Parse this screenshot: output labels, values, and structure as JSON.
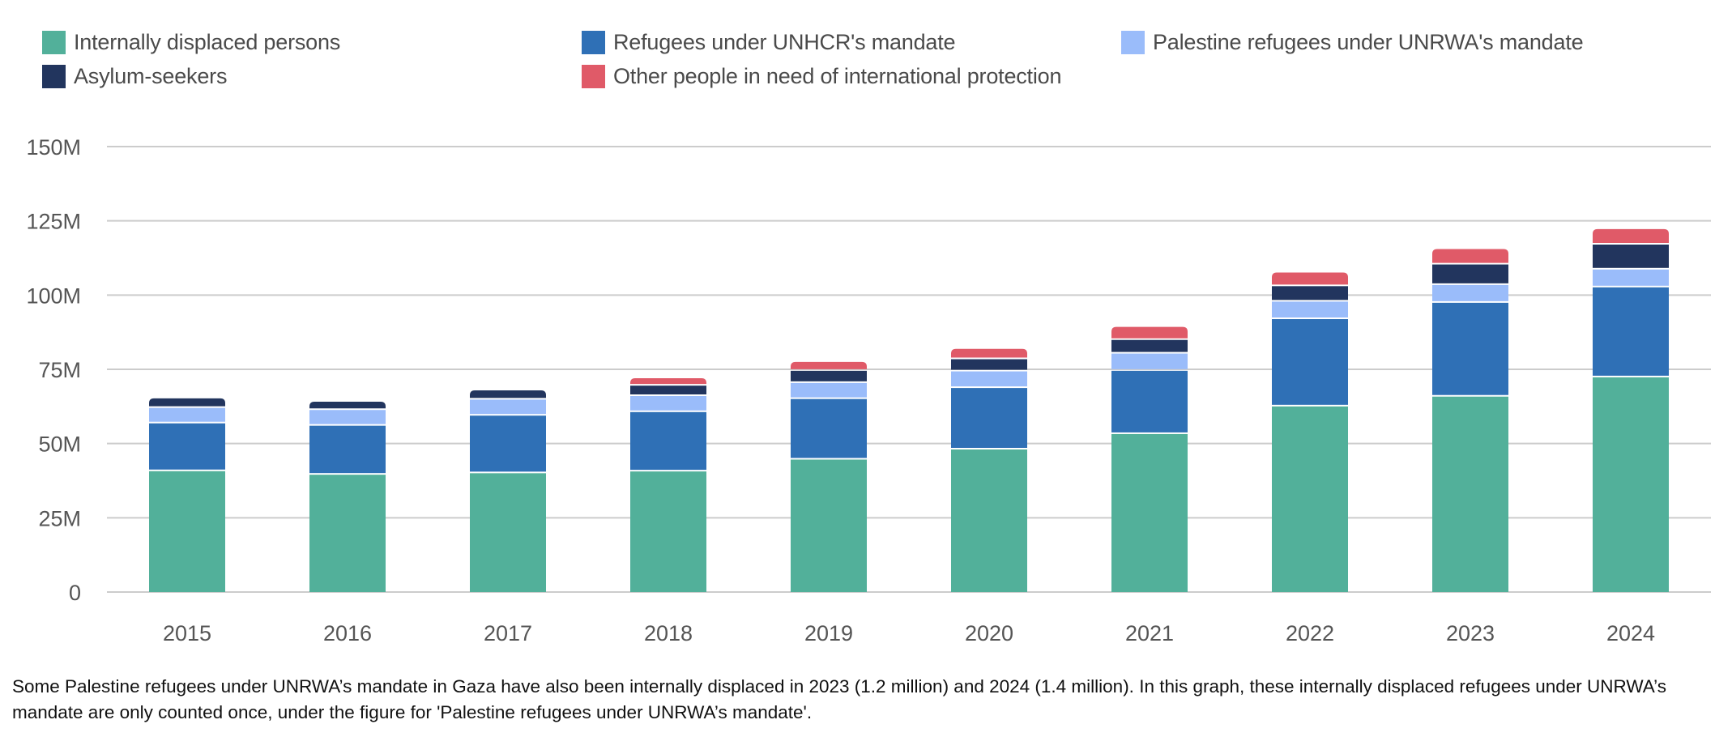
{
  "chart_data": {
    "type": "bar",
    "stacked": true,
    "title": "",
    "xlabel": "",
    "ylabel": "",
    "categories": [
      "2015",
      "2016",
      "2017",
      "2018",
      "2019",
      "2020",
      "2021",
      "2022",
      "2023",
      "2024"
    ],
    "ylim": [
      0,
      150000000
    ],
    "yticks": [
      0,
      25000000,
      50000000,
      75000000,
      100000000,
      125000000,
      150000000
    ],
    "ytick_labels": [
      "0",
      "25M",
      "50M",
      "75M",
      "100M",
      "125M",
      "150M"
    ],
    "grid": true,
    "legend_position": "top-left",
    "series": [
      {
        "name": "Internally displaced persons",
        "color": "#52b09a",
        "values": [
          40.7,
          39.5,
          40.0,
          40.6,
          44.6,
          48.0,
          53.2,
          62.5,
          65.8,
          72.3
        ]
      },
      {
        "name": "Refugees under UNHCR's mandate",
        "color": "#2f70b6",
        "values": [
          16.1,
          16.5,
          19.4,
          20.0,
          20.4,
          20.7,
          21.3,
          29.4,
          31.6,
          30.3
        ]
      },
      {
        "name": "Palestine refugees under UNRWA's mandate",
        "color": "#9abcfa",
        "values": [
          5.2,
          5.3,
          5.4,
          5.4,
          5.4,
          5.6,
          5.8,
          5.9,
          6.0,
          6.0
        ]
      },
      {
        "name": "Asylum-seekers",
        "color": "#22355e",
        "values": [
          3.2,
          2.8,
          3.1,
          3.5,
          4.1,
          4.1,
          4.6,
          5.2,
          6.9,
          8.4
        ]
      },
      {
        "name": "Other people in need of international protection",
        "color": "#e05a68",
        "values": [
          0,
          0,
          0,
          2.5,
          3.0,
          3.5,
          4.4,
          4.6,
          5.2,
          5.2
        ]
      }
    ],
    "value_unit": "millions"
  },
  "legend": {
    "items": [
      {
        "label": "Internally displaced persons",
        "color": "#52b09a"
      },
      {
        "label": "Refugees under UNHCR's mandate",
        "color": "#2f70b6"
      },
      {
        "label": "Palestine refugees under UNRWA's mandate",
        "color": "#9abcfa"
      },
      {
        "label": "Asylum-seekers",
        "color": "#22355e"
      },
      {
        "label": "Other people in need of international protection",
        "color": "#e05a68"
      }
    ]
  },
  "footnote": "Some Palestine refugees under UNRWA’s mandate in Gaza have also been internally displaced in 2023 (1.2 million) and 2024 (1.4 million). In this graph, these internally displaced refugees under UNRWA’s mandate are only counted once, under the figure for 'Palestine refugees under UNRWA’s mandate'."
}
